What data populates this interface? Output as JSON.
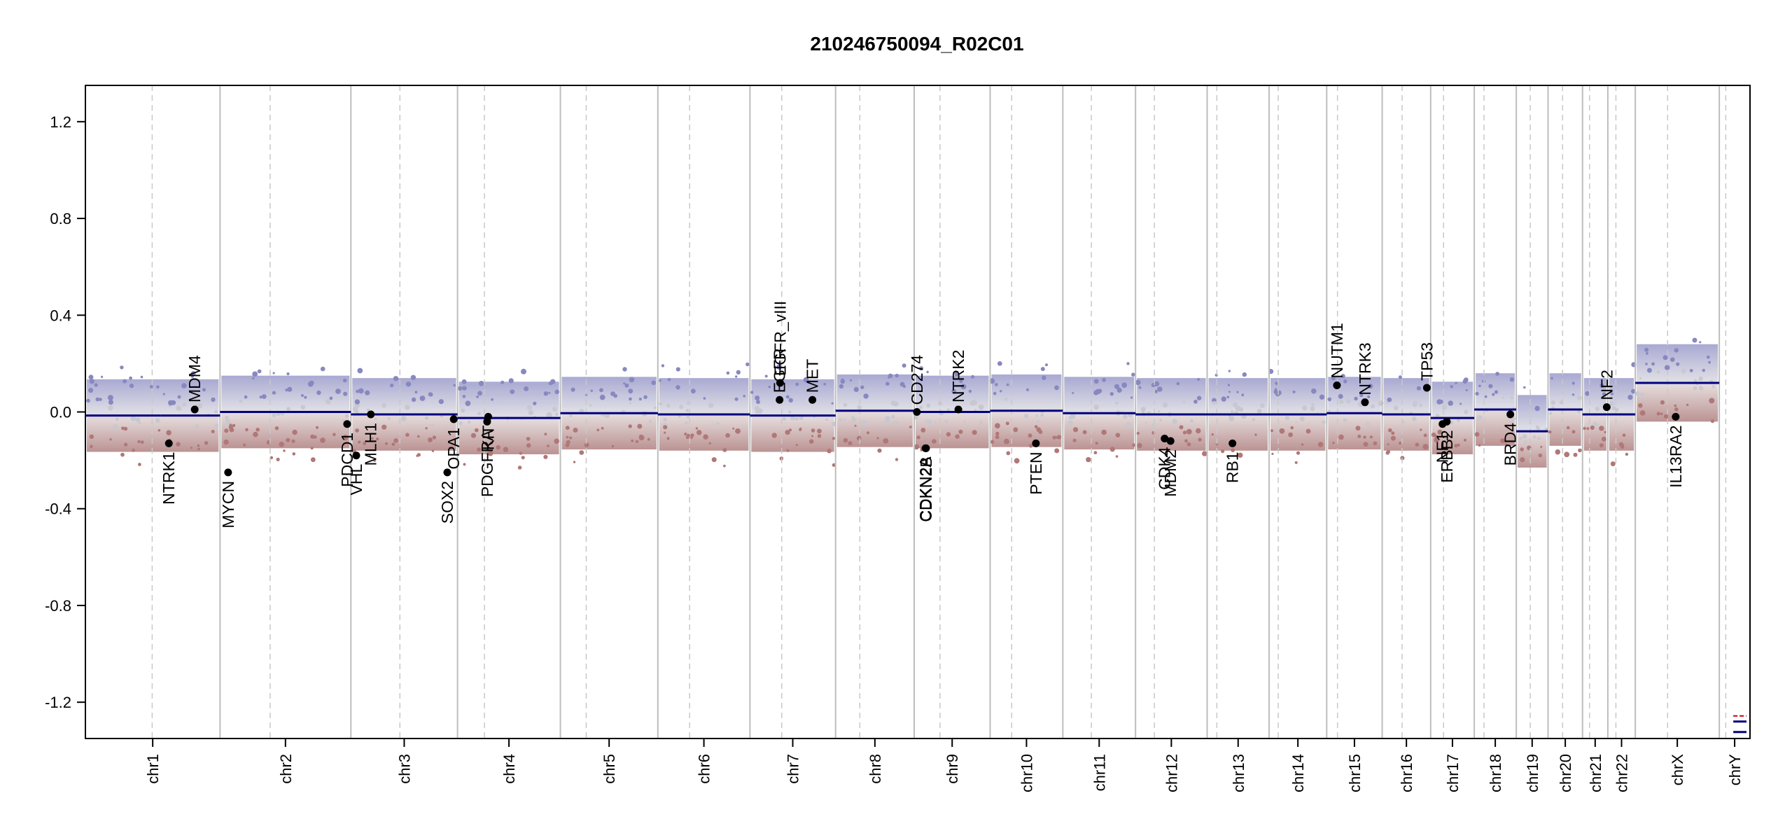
{
  "chart_data": {
    "type": "scatter",
    "title": "210246750094_R02C01",
    "xlabel": "",
    "ylabel": "",
    "ylim": [
      -1.35,
      1.35
    ],
    "y_ticks": [
      "1.2",
      "0.8",
      "0.4",
      "0.0",
      "-0.4",
      "-0.8",
      "-1.2"
    ],
    "y_tick_values": [
      1.2,
      0.8,
      0.4,
      0.0,
      -0.4,
      -0.8,
      -1.2
    ],
    "grid": "vertical chromosome boundaries (solid) and centromeres (dashed)",
    "colors": {
      "gain": "#6f6fb8",
      "loss": "#a86868",
      "neutral": "#d0d0d0",
      "segment": "#00007f",
      "boundary": "#bdbdbd"
    },
    "chromosomes": [
      {
        "name": "chr1",
        "start": 0,
        "end": 250,
        "centromere": 124,
        "segments": [
          {
            "from": 0,
            "to": 140,
            "value": -0.015
          },
          {
            "from": 140,
            "to": 250,
            "value": -0.015
          }
        ]
      },
      {
        "name": "chr2",
        "start": 250,
        "end": 493,
        "centromere": 343,
        "segments": [
          {
            "from": 250,
            "to": 493,
            "value": 0.0
          }
        ]
      },
      {
        "name": "chr3",
        "start": 493,
        "end": 691,
        "centromere": 584,
        "segments": [
          {
            "from": 493,
            "to": 691,
            "value": -0.01
          }
        ]
      },
      {
        "name": "chr4",
        "start": 691,
        "end": 882,
        "centromere": 741,
        "segments": [
          {
            "from": 691,
            "to": 882,
            "value": -0.025
          }
        ]
      },
      {
        "name": "chr5",
        "start": 882,
        "end": 1063,
        "centromere": 930,
        "segments": [
          {
            "from": 882,
            "to": 1063,
            "value": -0.005
          }
        ]
      },
      {
        "name": "chr6",
        "start": 1063,
        "end": 1234,
        "centromere": 1122,
        "segments": [
          {
            "from": 1063,
            "to": 1234,
            "value": -0.01
          }
        ]
      },
      {
        "name": "chr7",
        "start": 1234,
        "end": 1393,
        "centromere": 1293,
        "segments": [
          {
            "from": 1234,
            "to": 1393,
            "value": -0.015
          }
        ]
      },
      {
        "name": "chr8",
        "start": 1393,
        "end": 1539,
        "centromere": 1438,
        "segments": [
          {
            "from": 1393,
            "to": 1539,
            "value": 0.005
          }
        ]
      },
      {
        "name": "chr9",
        "start": 1539,
        "end": 1680,
        "centromere": 1587,
        "segments": [
          {
            "from": 1539,
            "to": 1680,
            "value": 0.0
          }
        ]
      },
      {
        "name": "chr10",
        "start": 1680,
        "end": 1815,
        "centromere": 1720,
        "segments": [
          {
            "from": 1680,
            "to": 1815,
            "value": 0.005
          }
        ]
      },
      {
        "name": "chr11",
        "start": 1815,
        "end": 1950,
        "centromere": 1868,
        "segments": [
          {
            "from": 1815,
            "to": 1950,
            "value": -0.005
          }
        ]
      },
      {
        "name": "chr12",
        "start": 1950,
        "end": 2083,
        "centromere": 1985,
        "segments": [
          {
            "from": 1950,
            "to": 2083,
            "value": -0.01
          }
        ]
      },
      {
        "name": "chr13",
        "start": 2083,
        "end": 2198,
        "centromere": 2101,
        "segments": [
          {
            "from": 2083,
            "to": 2198,
            "value": -0.01
          }
        ]
      },
      {
        "name": "chr14",
        "start": 2198,
        "end": 2305,
        "centromere": 2215,
        "segments": [
          {
            "from": 2198,
            "to": 2305,
            "value": -0.01
          }
        ]
      },
      {
        "name": "chr15",
        "start": 2305,
        "end": 2408,
        "centromere": 2325,
        "segments": [
          {
            "from": 2305,
            "to": 2408,
            "value": -0.005
          }
        ]
      },
      {
        "name": "chr16",
        "start": 2408,
        "end": 2498,
        "centromere": 2445,
        "segments": [
          {
            "from": 2408,
            "to": 2498,
            "value": -0.01
          }
        ]
      },
      {
        "name": "chr17",
        "start": 2498,
        "end": 2579,
        "centromere": 2522,
        "segments": [
          {
            "from": 2498,
            "to": 2579,
            "value": -0.025
          }
        ]
      },
      {
        "name": "chr18",
        "start": 2579,
        "end": 2657,
        "centromere": 2597,
        "segments": [
          {
            "from": 2579,
            "to": 2657,
            "value": 0.01
          }
        ]
      },
      {
        "name": "chr19",
        "start": 2657,
        "end": 2716,
        "centromere": 2683,
        "segments": [
          {
            "from": 2657,
            "to": 2716,
            "value": -0.08
          }
        ]
      },
      {
        "name": "chr20",
        "start": 2716,
        "end": 2780,
        "centromere": 2743,
        "segments": [
          {
            "from": 2716,
            "to": 2780,
            "value": 0.01
          }
        ]
      },
      {
        "name": "chr21",
        "start": 2780,
        "end": 2827,
        "centromere": 2793,
        "segments": [
          {
            "from": 2780,
            "to": 2827,
            "value": -0.01
          }
        ]
      },
      {
        "name": "chr22",
        "start": 2827,
        "end": 2878,
        "centromere": 2842,
        "segments": [
          {
            "from": 2827,
            "to": 2878,
            "value": -0.01
          }
        ]
      },
      {
        "name": "chrX",
        "start": 2878,
        "end": 3034,
        "centromere": 2938,
        "segments": [
          {
            "from": 2878,
            "to": 3034,
            "value": 0.12
          }
        ]
      },
      {
        "name": "chrY",
        "start": 3034,
        "end": 3091,
        "centromere": 3046,
        "segments": [
          {
            "from": 3034,
            "to": 3091,
            "value": -1.28
          }
        ]
      }
    ],
    "genes": [
      {
        "name": "NTRK1",
        "chr": "chr1",
        "pos": 155,
        "value": -0.13,
        "label_side": "below"
      },
      {
        "name": "MDM4",
        "chr": "chr1",
        "pos": 203,
        "value": 0.01,
        "label_side": "above"
      },
      {
        "name": "MYCN",
        "chr": "chr2",
        "pos": 265,
        "value": -0.25,
        "label_side": "below"
      },
      {
        "name": "PDCD1",
        "chr": "chr2",
        "pos": 486,
        "value": -0.05,
        "label_side": "below"
      },
      {
        "name": "VHL",
        "chr": "chr3",
        "pos": 503,
        "value": -0.18,
        "label_side": "below"
      },
      {
        "name": "MLH1",
        "chr": "chr3",
        "pos": 530,
        "value": -0.01,
        "label_side": "below"
      },
      {
        "name": "SOX2",
        "chr": "chr3",
        "pos": 672,
        "value": -0.25,
        "label_side": "below"
      },
      {
        "name": "OPA1",
        "chr": "chr3",
        "pos": 684,
        "value": -0.03,
        "label_side": "below"
      },
      {
        "name": "PDGFRA",
        "chr": "chr4",
        "pos": 746,
        "value": -0.04,
        "label_side": "below"
      },
      {
        "name": "KIT",
        "chr": "chr4",
        "pos": 748,
        "value": -0.02,
        "label_side": "below"
      },
      {
        "name": "EGFR",
        "chr": "chr7",
        "pos": 1289,
        "value": 0.05,
        "label_side": "above"
      },
      {
        "name": "EGFR_vIII",
        "chr": "chr7",
        "pos": 1290,
        "value": 0.12,
        "label_side": "above"
      },
      {
        "name": "MET",
        "chr": "chr7",
        "pos": 1350,
        "value": 0.05,
        "label_side": "above"
      },
      {
        "name": "CD274",
        "chr": "chr9",
        "pos": 1544,
        "value": 0.0,
        "label_side": "above"
      },
      {
        "name": "CDKN2A",
        "chr": "chr9",
        "pos": 1560,
        "value": -0.15,
        "label_side": "below"
      },
      {
        "name": "CDKN2B",
        "chr": "chr9",
        "pos": 1561,
        "value": -0.15,
        "label_side": "below"
      },
      {
        "name": "NTRK2",
        "chr": "chr9",
        "pos": 1621,
        "value": 0.01,
        "label_side": "above"
      },
      {
        "name": "PTEN",
        "chr": "chr10",
        "pos": 1765,
        "value": -0.13,
        "label_side": "below"
      },
      {
        "name": "CDK4",
        "chr": "chr12",
        "pos": 2004,
        "value": -0.11,
        "label_side": "below"
      },
      {
        "name": "MDM2",
        "chr": "chr12",
        "pos": 2015,
        "value": -0.12,
        "label_side": "below"
      },
      {
        "name": "RB1",
        "chr": "chr13",
        "pos": 2130,
        "value": -0.13,
        "label_side": "below"
      },
      {
        "name": "NUTM1",
        "chr": "chr15",
        "pos": 2324,
        "value": 0.11,
        "label_side": "above"
      },
      {
        "name": "NTRK3",
        "chr": "chr15",
        "pos": 2376,
        "value": 0.04,
        "label_side": "above"
      },
      {
        "name": "TP53",
        "chr": "chr17",
        "pos": 2491,
        "value": 0.1,
        "label_side": "above"
      },
      {
        "name": "ERBB2",
        "chr": "chr17",
        "pos": 2528,
        "value": -0.04,
        "label_side": "below"
      },
      {
        "name": "NF1",
        "chr": "chr17",
        "pos": 2520,
        "value": -0.05,
        "label_side": "below"
      },
      {
        "name": "BRD4",
        "chr": "chr19",
        "pos": 2646,
        "value": -0.01,
        "label_side": "below"
      },
      {
        "name": "NF2",
        "chr": "chr22",
        "pos": 2825,
        "value": 0.02,
        "label_side": "above"
      },
      {
        "name": "IL13RA2",
        "chr": "chrX",
        "pos": 2953,
        "value": -0.02,
        "label_side": "below"
      }
    ]
  }
}
